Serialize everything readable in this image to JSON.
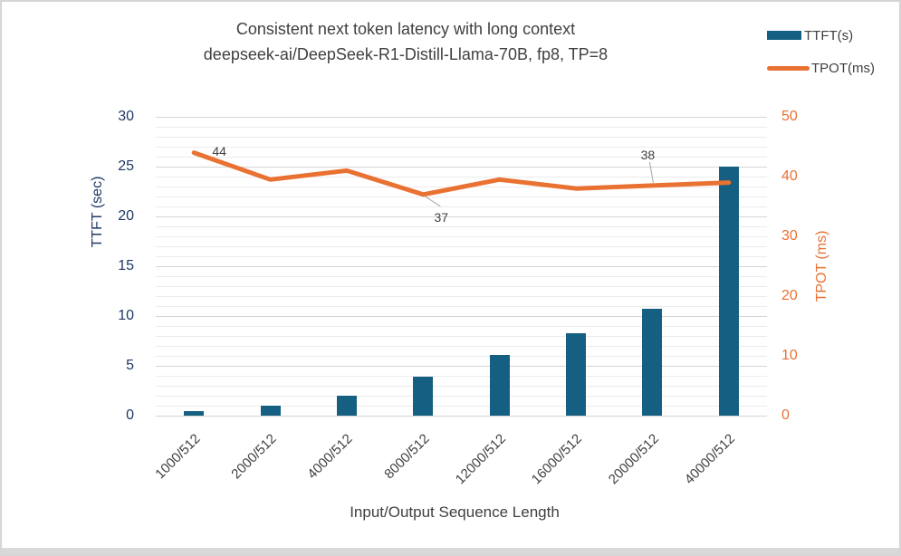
{
  "legend": {
    "position": "top-right",
    "items": [
      {
        "label": "TTFT(s)",
        "marker": "bar-swatch"
      },
      {
        "label": "TPOT(ms)",
        "marker": "line-swatch"
      }
    ]
  },
  "chart_data": {
    "type": "combo",
    "title_lines": [
      "Consistent next token latency with long context",
      "deepseek-ai/DeepSeek-R1-Distill-Llama-70B, fp8, TP=8"
    ],
    "categories": [
      "1000/512",
      "2000/512",
      "4000/512",
      "8000/512",
      "12000/512",
      "16000/512",
      "20000/512",
      "40000/512"
    ],
    "series": [
      {
        "name": "TTFT(s)",
        "type": "bar",
        "axis": "left",
        "color": "#156082",
        "values": [
          0.5,
          1.0,
          2.0,
          3.9,
          6.1,
          8.3,
          10.7,
          25.0
        ]
      },
      {
        "name": "TPOT(ms)",
        "type": "line",
        "axis": "right",
        "color": "#E97132",
        "values": [
          44,
          39.5,
          41,
          37,
          39.5,
          38,
          38.5,
          39
        ],
        "data_labels": [
          {
            "index": 0,
            "text": "44",
            "placement": "right"
          },
          {
            "index": 3,
            "text": "37",
            "placement": "below-leader"
          },
          {
            "index": 6,
            "text": "38",
            "placement": "above-leader"
          }
        ]
      }
    ],
    "axes": {
      "left": {
        "title": "TTFT (sec)",
        "min": 0,
        "max": 30,
        "major_step": 5,
        "minor_step": 1,
        "ticks": [
          0,
          5,
          10,
          15,
          20,
          25,
          30
        ],
        "color": "#1F3864"
      },
      "right": {
        "title": "TPOT (ms)",
        "min": 0,
        "max": 50,
        "major_step": 10,
        "ticks": [
          0,
          10,
          20,
          30,
          40,
          50
        ],
        "color": "#E97132"
      },
      "x": {
        "title": "Input/Output Sequence Length",
        "label_rotation": 45,
        "color": "#404040"
      }
    },
    "grid": {
      "minor_on": true,
      "major_color": "#d4d4d4",
      "minor_color": "#ebebeb"
    }
  },
  "colors": {
    "background": "#FFFFFF",
    "frame_border": "#D6D6D6",
    "bottom_strip": "#D9D9D9",
    "title_text": "#404040",
    "leader_line": "#A6A6A6"
  }
}
